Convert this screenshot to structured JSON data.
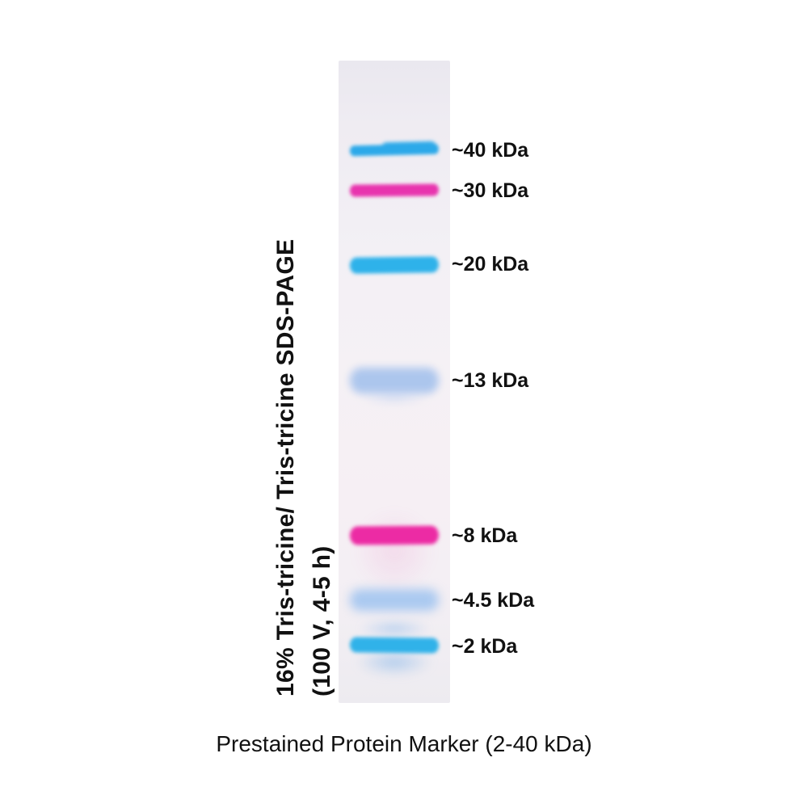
{
  "figure": {
    "side_label": {
      "line1": "16% Tris-tricine/ Tris-tricine SDS-PAGE",
      "line2": "(100 V, 4-5 h)"
    },
    "caption": "Prestained Protein Marker (2-40 kDa)",
    "gel": {
      "bands": [
        {
          "label": "~40 kDa",
          "size_kda": 40,
          "stain": "blue",
          "color": "#2ca9e9"
        },
        {
          "label": "~30 kDa",
          "size_kda": 30,
          "stain": "magenta",
          "color": "#e834ae"
        },
        {
          "label": "~20 kDa",
          "size_kda": 20,
          "stain": "blue",
          "color": "#2eb2ea"
        },
        {
          "label": "~13 kDa",
          "size_kda": 13,
          "stain": "pale-blue",
          "color": "#a9c4ed"
        },
        {
          "label": "~8 kDa",
          "size_kda": 8,
          "stain": "magenta",
          "color": "#ec2ba4"
        },
        {
          "label": "~4.5 kDa",
          "size_kda": 4.5,
          "stain": "pale-blue",
          "color": "#aac9f0"
        },
        {
          "label": "~2 kDa",
          "size_kda": 2,
          "stain": "blue",
          "color": "#30b2e9"
        }
      ]
    }
  }
}
